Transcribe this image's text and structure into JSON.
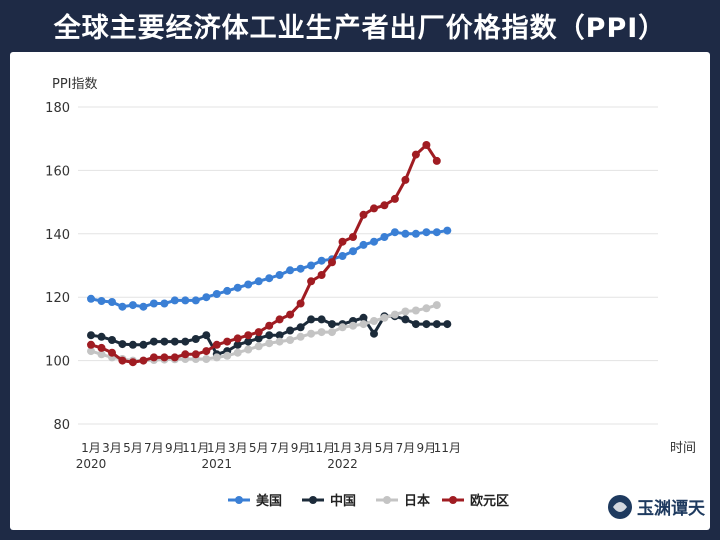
{
  "title": "全球主要经济体工业生产者出厂价格指数（PPI）",
  "chart_data": {
    "type": "line",
    "ylabel": "PPI指数",
    "xlabel": "时间",
    "ylim": [
      80,
      180
    ],
    "yticks": [
      80,
      100,
      120,
      140,
      160,
      180
    ],
    "grid": true,
    "legend_position": "bottom",
    "x_tick_labels": [
      "1月",
      "3月",
      "5月",
      "7月",
      "9月",
      "11月",
      "1月",
      "3月",
      "5月",
      "7月",
      "9月",
      "11月",
      "1月",
      "3月",
      "5月",
      "7月",
      "9月",
      "11月"
    ],
    "year_labels": [
      {
        "index": 0,
        "label": "2020"
      },
      {
        "index": 12,
        "label": "2021"
      },
      {
        "index": 24,
        "label": "2022"
      }
    ],
    "x_count": 35,
    "series": [
      {
        "name": "美国",
        "color": "#3a7fd5",
        "values": [
          119.5,
          118.8,
          118.5,
          117.0,
          117.5,
          117.0,
          118.0,
          118.0,
          119.0,
          119.0,
          119.0,
          120.0,
          121.0,
          122.0,
          123.0,
          124.0,
          125.0,
          126.0,
          127.0,
          128.5,
          129.0,
          130.0,
          131.5,
          132.0,
          133.0,
          134.5,
          136.5,
          137.5,
          139.0,
          140.5,
          140.0,
          140.0,
          140.5,
          140.5,
          141.0
        ]
      },
      {
        "name": "中国",
        "color": "#1c2b3a",
        "values": [
          108.0,
          107.5,
          106.5,
          105.2,
          105.0,
          105.0,
          106.0,
          106.0,
          106.0,
          106.0,
          106.8,
          108.0,
          102.0,
          103.0,
          105.0,
          106.0,
          107.0,
          108.0,
          108.0,
          109.5,
          110.5,
          113.0,
          113.0,
          111.5,
          111.5,
          112.5,
          113.5,
          108.5,
          114.0,
          114.0,
          113.0,
          111.5,
          111.5,
          111.5,
          111.5
        ]
      },
      {
        "name": "日本",
        "color": "#c4c4c4",
        "values": [
          103.0,
          102.0,
          101.0,
          100.5,
          100.0,
          100.0,
          100.2,
          100.3,
          100.4,
          100.5,
          100.5,
          100.5,
          101.0,
          101.5,
          102.5,
          103.5,
          104.5,
          105.5,
          106.0,
          106.5,
          107.5,
          108.5,
          109.0,
          109.0,
          110.5,
          111.0,
          111.5,
          112.5,
          113.5,
          114.5,
          115.5,
          115.8,
          116.5,
          117.5,
          null
        ]
      },
      {
        "name": "欧元区",
        "color": "#a01c22",
        "values": [
          105.0,
          104.0,
          102.5,
          100.0,
          99.5,
          100.0,
          101.0,
          101.0,
          101.0,
          102.0,
          102.0,
          103.0,
          105.0,
          106.0,
          107.0,
          108.0,
          109.0,
          111.0,
          113.0,
          114.5,
          118.0,
          125.0,
          127.0,
          131.0,
          137.5,
          139.0,
          146.0,
          148.0,
          149.0,
          151.0,
          157.0,
          165.0,
          168.0,
          163.0,
          null
        ]
      }
    ]
  },
  "watermark": "玉渊谭天"
}
